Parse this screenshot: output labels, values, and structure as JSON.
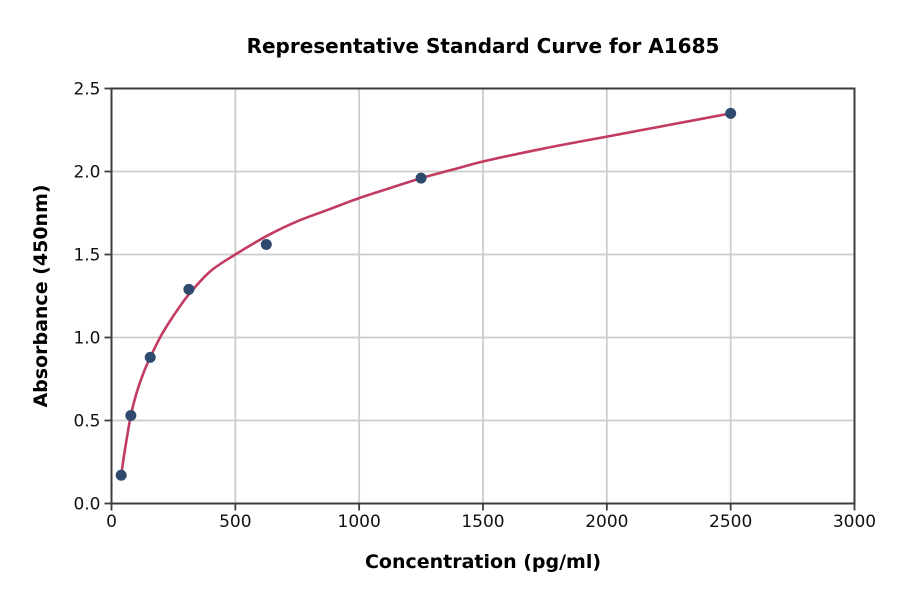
{
  "chart_data": {
    "type": "scatter",
    "title": "Representative Standard Curve for A1685",
    "xlabel": "Concentration (pg/ml)",
    "ylabel": "Absorbance (450nm)",
    "xlim": [
      0,
      3000
    ],
    "ylim": [
      0.0,
      2.5
    ],
    "x_ticks": [
      0,
      500,
      1000,
      1500,
      2000,
      2500,
      3000
    ],
    "x_tick_labels": [
      "0",
      "500",
      "1000",
      "1500",
      "2000",
      "2500",
      "3000"
    ],
    "y_ticks": [
      0.0,
      0.5,
      1.0,
      1.5,
      2.0,
      2.5
    ],
    "y_tick_labels": [
      "0.0",
      "0.5",
      "1.0",
      "1.5",
      "2.0",
      "2.5"
    ],
    "grid": true,
    "legend": "none",
    "series": [
      {
        "name": "standard-points",
        "type": "scatter",
        "x": [
          39.1,
          78.1,
          156.3,
          312.5,
          625,
          1250,
          2500
        ],
        "y": [
          0.17,
          0.53,
          0.88,
          1.29,
          1.56,
          1.96,
          2.35
        ]
      },
      {
        "name": "fit-curve",
        "type": "line",
        "x": [
          39.1,
          55,
          78.1,
          100,
          130,
          156.3,
          200,
          250,
          312.5,
          400,
          500,
          625,
          750,
          875,
          1000,
          1125,
          1250,
          1375,
          1500,
          1750,
          2000,
          2250,
          2500
        ],
        "y": [
          0.17,
          0.33,
          0.53,
          0.66,
          0.79,
          0.88,
          1.01,
          1.13,
          1.26,
          1.4,
          1.5,
          1.61,
          1.7,
          1.77,
          1.84,
          1.9,
          1.96,
          2.01,
          2.06,
          2.14,
          2.21,
          2.28,
          2.35
        ]
      }
    ],
    "colors": {
      "curve": "#c23b60",
      "marker": "#2e4a6e",
      "grid": "#cccccc",
      "spine": "#3d3d3d",
      "tick_text": "#111111",
      "background": "#ffffff"
    }
  }
}
